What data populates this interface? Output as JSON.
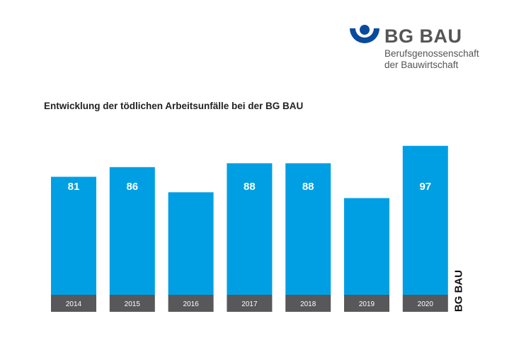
{
  "logo": {
    "name": "BG BAU",
    "line1": "Berufsgenossenschaft",
    "line2": "der Bauwirtschaft"
  },
  "colors": {
    "bar": "#009fe3",
    "label_band": "#58585a",
    "logo_blue": "#0a4a9e"
  },
  "chart_data": {
    "type": "bar",
    "title": "Entwicklung der tödlichen Arbeitsunfälle bei der BG BAU",
    "categories": [
      "2014",
      "2015",
      "2016",
      "2017",
      "2018",
      "2019",
      "2020"
    ],
    "values": [
      81,
      86,
      73,
      88,
      88,
      70,
      97
    ],
    "xlabel": "",
    "ylabel": "",
    "source_label": "BG BAU",
    "grid": false
  }
}
